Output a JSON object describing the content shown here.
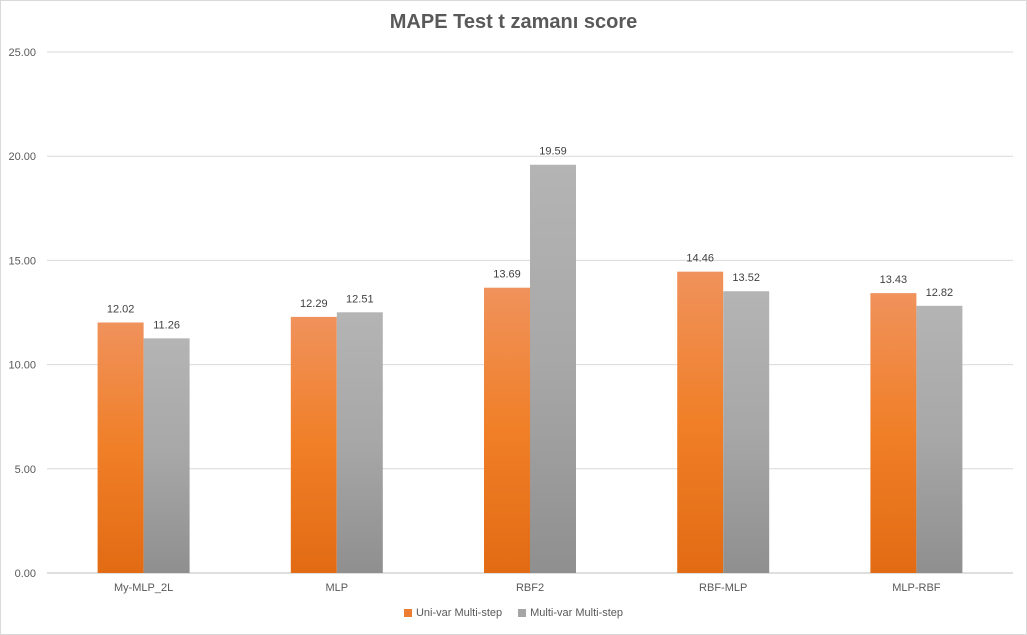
{
  "chart_data": {
    "type": "bar",
    "title": "MAPE Test t zamanı score",
    "xlabel": "",
    "ylabel": "",
    "categories": [
      "My-MLP_2L",
      "MLP",
      "RBF2",
      "RBF-MLP",
      "MLP-RBF"
    ],
    "series": [
      {
        "name": "Uni-var Multi-step",
        "values": [
          12.02,
          12.29,
          13.69,
          14.46,
          13.43
        ],
        "color": "#ed7d31"
      },
      {
        "name": "Multi-var Multi-step",
        "values": [
          11.26,
          12.51,
          19.59,
          13.52,
          12.82
        ],
        "color": "#a5a5a5"
      }
    ],
    "ylim": [
      0,
      25
    ],
    "yticks": [
      "0.00",
      "5.00",
      "10.00",
      "15.00",
      "20.00",
      "25.00"
    ],
    "grid": true,
    "legend_position": "bottom"
  }
}
